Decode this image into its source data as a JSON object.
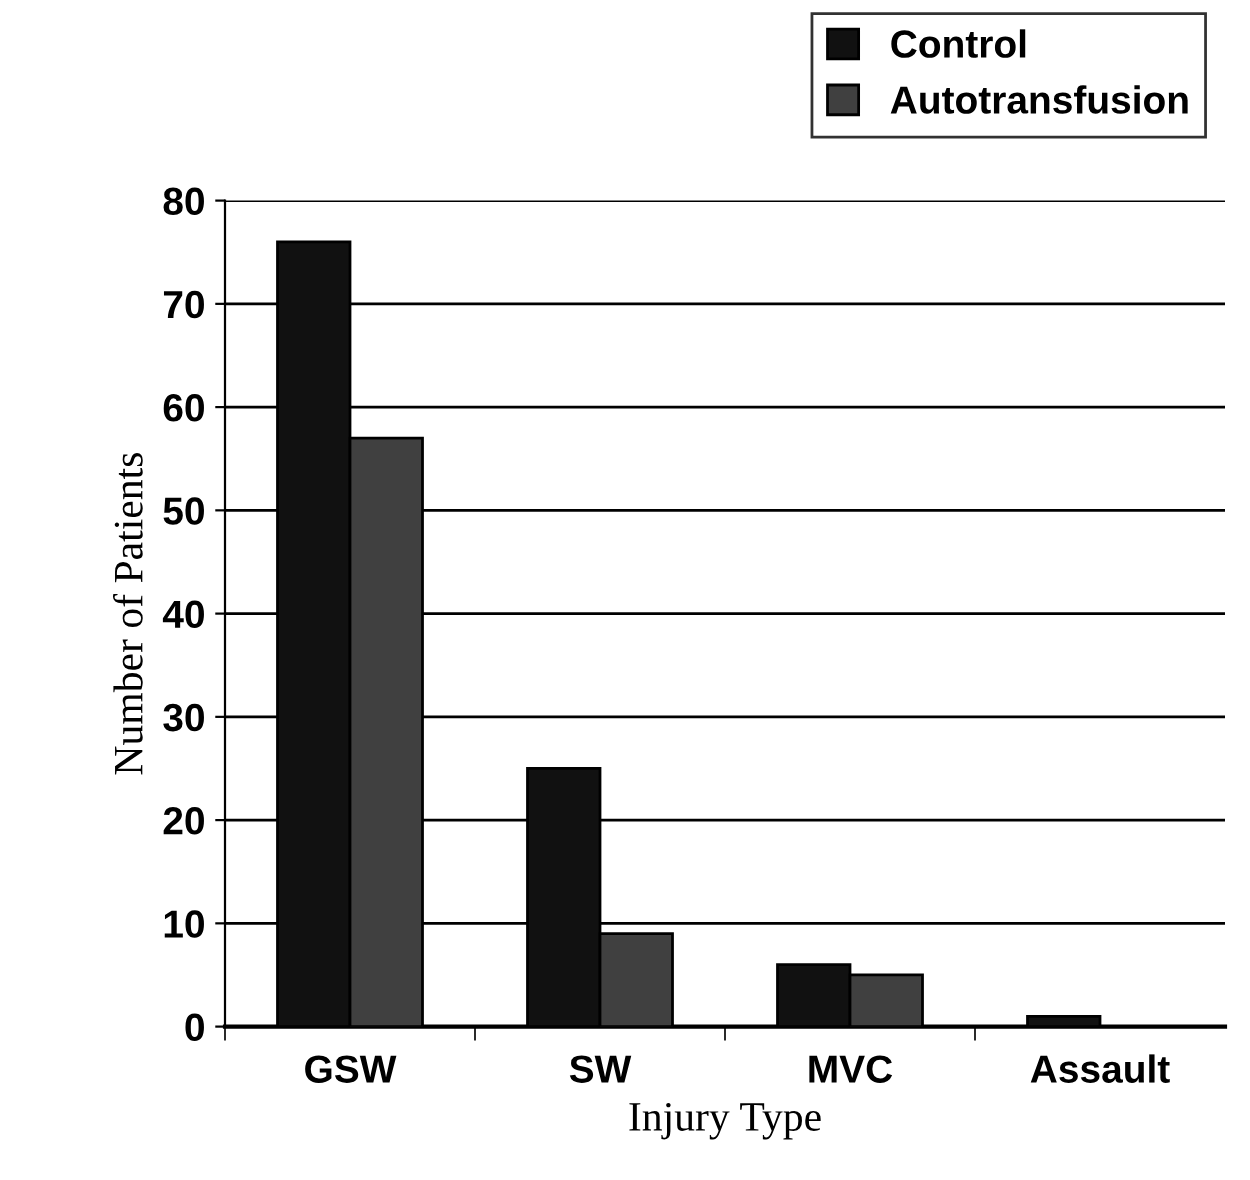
{
  "chart_data": {
    "type": "bar",
    "xlabel": "Injury Type",
    "ylabel": "Number of Patients",
    "categories": [
      "GSW",
      "SW",
      "MVC",
      "Assault"
    ],
    "series": [
      {
        "name": "Control",
        "color": "#111111",
        "values": [
          76,
          25,
          6,
          1
        ]
      },
      {
        "name": "Autotransfusion",
        "color": "#404040",
        "values": [
          57,
          9,
          5,
          null
        ]
      }
    ],
    "ylim": [
      0,
      80
    ],
    "yticks": [
      0,
      10,
      20,
      30,
      40,
      50,
      60,
      70,
      80
    ],
    "grid": "y",
    "legend": "top right"
  }
}
